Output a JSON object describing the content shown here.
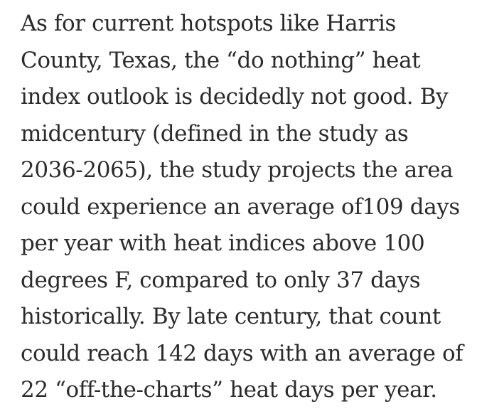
{
  "article": {
    "lines": [
      "As for current hotspots like Harris",
      "County, Texas, the “do nothing” heat",
      "index outlook is decidedly not good. By",
      "midcentury (defined in the study as",
      "2036-2065), the study projects the area",
      "could experience an average of109 days",
      "per year with heat indices above 100",
      "degrees F, compared to only 37 days",
      "historically. By late century, that count",
      "could reach 142 days with an average of",
      "22 “off-the-charts” heat days per year."
    ]
  },
  "colors": {
    "text": "#2b2b2b",
    "background": "#ffffff"
  }
}
